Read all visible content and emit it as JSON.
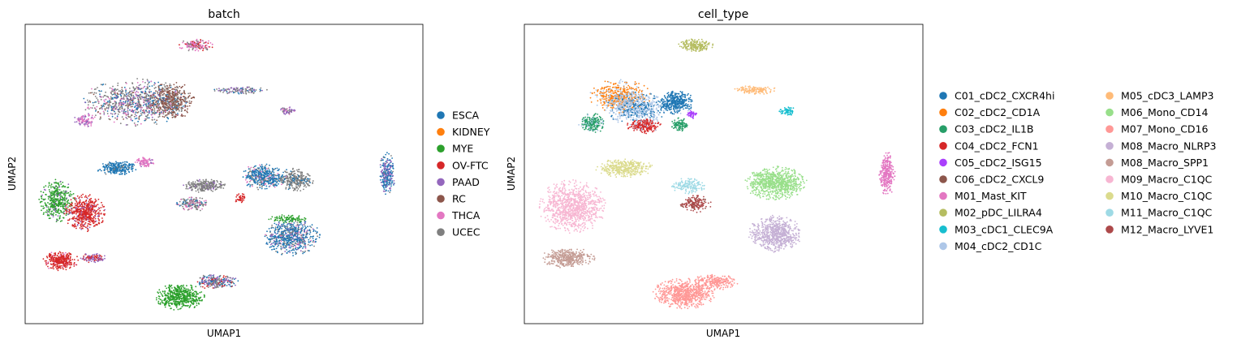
{
  "chart_data": [
    {
      "type": "scatter",
      "title": "batch",
      "xlabel": "UMAP1",
      "ylabel": "UMAP2",
      "xlim": [
        0,
        100
      ],
      "ylim": [
        0,
        100
      ],
      "ticks": false,
      "grid": false,
      "legend": "right",
      "legend_labels": [
        "ESCA",
        "KIDNEY",
        "MYE",
        "OV-FTC",
        "PAAD",
        "RC",
        "THCA",
        "UCEC"
      ],
      "colors": {
        "ESCA": "#1f77b4",
        "KIDNEY": "#ff7f0e",
        "MYE": "#2ca02c",
        "OV-FTC": "#d62728",
        "PAAD": "#9467bd",
        "RC": "#8c564b",
        "THCA": "#e377c2",
        "UCEC": "#7f7f7f"
      },
      "clusters": [
        {
          "cx": 43,
          "cy": 93,
          "rx": 4,
          "ry": 1.8,
          "n": 160,
          "mix": [
            [
              "THCA",
              0.5
            ],
            [
              "UCEC",
              0.3
            ],
            [
              "OV-FTC",
              0.2
            ]
          ]
        },
        {
          "cx": 28,
          "cy": 74,
          "rx": 12,
          "ry": 7,
          "n": 900,
          "mix": [
            [
              "UCEC",
              0.45
            ],
            [
              "ESCA",
              0.2
            ],
            [
              "THCA",
              0.15
            ],
            [
              "RC",
              0.12
            ],
            [
              "PAAD",
              0.08
            ]
          ]
        },
        {
          "cx": 37,
          "cy": 74.5,
          "rx": 5,
          "ry": 5.5,
          "n": 420,
          "mix": [
            [
              "RC",
              0.7
            ],
            [
              "UCEC",
              0.2
            ],
            [
              "ESCA",
              0.1
            ]
          ]
        },
        {
          "cx": 15,
          "cy": 68,
          "rx": 2.5,
          "ry": 2,
          "n": 90,
          "mix": [
            [
              "THCA",
              0.7
            ],
            [
              "PAAD",
              0.3
            ]
          ]
        },
        {
          "cx": 54,
          "cy": 78,
          "rx": 6,
          "ry": 1.2,
          "n": 130,
          "mix": [
            [
              "UCEC",
              0.5
            ],
            [
              "PAAD",
              0.3
            ],
            [
              "ESCA",
              0.2
            ]
          ]
        },
        {
          "cx": 66,
          "cy": 71,
          "rx": 2,
          "ry": 1.3,
          "n": 60,
          "mix": [
            [
              "PAAD",
              0.5
            ],
            [
              "UCEC",
              0.3
            ],
            [
              "THCA",
              0.2
            ]
          ]
        },
        {
          "cx": 23,
          "cy": 52,
          "rx": 4.5,
          "ry": 2.2,
          "n": 260,
          "mix": [
            [
              "ESCA",
              0.9
            ],
            [
              "UCEC",
              0.1
            ]
          ]
        },
        {
          "cx": 30,
          "cy": 54,
          "rx": 2.2,
          "ry": 1.5,
          "n": 90,
          "mix": [
            [
              "THCA",
              0.8
            ],
            [
              "PAAD",
              0.2
            ]
          ]
        },
        {
          "cx": 8,
          "cy": 41,
          "rx": 4,
          "ry": 6.5,
          "n": 420,
          "mix": [
            [
              "MYE",
              0.85
            ],
            [
              "PAAD",
              0.15
            ]
          ]
        },
        {
          "cx": 15,
          "cy": 37,
          "rx": 4.5,
          "ry": 5.5,
          "n": 520,
          "mix": [
            [
              "OV-FTC",
              0.88
            ],
            [
              "PAAD",
              0.12
            ]
          ]
        },
        {
          "cx": 45,
          "cy": 46,
          "rx": 5,
          "ry": 2,
          "n": 260,
          "mix": [
            [
              "UCEC",
              0.9
            ],
            [
              "PAAD",
              0.1
            ]
          ]
        },
        {
          "cx": 42,
          "cy": 40,
          "rx": 3.5,
          "ry": 2.3,
          "n": 170,
          "mix": [
            [
              "UCEC",
              0.6
            ],
            [
              "THCA",
              0.25
            ],
            [
              "ESCA",
              0.15
            ]
          ]
        },
        {
          "cx": 60,
          "cy": 49,
          "rx": 5,
          "ry": 4,
          "n": 430,
          "mix": [
            [
              "ESCA",
              0.75
            ],
            [
              "UCEC",
              0.15
            ],
            [
              "THCA",
              0.1
            ]
          ]
        },
        {
          "cx": 68,
          "cy": 48,
          "rx": 4,
          "ry": 3.5,
          "n": 300,
          "mix": [
            [
              "UCEC",
              0.85
            ],
            [
              "ESCA",
              0.15
            ]
          ]
        },
        {
          "cx": 54,
          "cy": 42,
          "rx": 1.4,
          "ry": 1.6,
          "n": 40,
          "mix": [
            [
              "OV-FTC",
              1.0
            ]
          ]
        },
        {
          "cx": 67,
          "cy": 29,
          "rx": 6.5,
          "ry": 5.5,
          "n": 650,
          "mix": [
            [
              "ESCA",
              0.6
            ],
            [
              "UCEC",
              0.25
            ],
            [
              "PAAD",
              0.1
            ],
            [
              "THCA",
              0.05
            ]
          ]
        },
        {
          "cx": 66,
          "cy": 35,
          "rx": 5,
          "ry": 1.2,
          "n": 90,
          "mix": [
            [
              "MYE",
              1.0
            ]
          ]
        },
        {
          "cx": 91,
          "cy": 50,
          "rx": 1.8,
          "ry": 6.5,
          "n": 260,
          "mix": [
            [
              "ESCA",
              0.55
            ],
            [
              "PAAD",
              0.35
            ],
            [
              "UCEC",
              0.1
            ]
          ]
        },
        {
          "cx": 9,
          "cy": 21,
          "rx": 4,
          "ry": 3,
          "n": 300,
          "mix": [
            [
              "OV-FTC",
              0.95
            ],
            [
              "THCA",
              0.05
            ]
          ]
        },
        {
          "cx": 17,
          "cy": 22,
          "rx": 3,
          "ry": 1.5,
          "n": 110,
          "mix": [
            [
              "PAAD",
              0.6
            ],
            [
              "OV-FTC",
              0.4
            ]
          ]
        },
        {
          "cx": 39,
          "cy": 9,
          "rx": 5.5,
          "ry": 4,
          "n": 520,
          "mix": [
            [
              "MYE",
              1.0
            ]
          ]
        },
        {
          "cx": 48,
          "cy": 14,
          "rx": 5,
          "ry": 2.2,
          "n": 260,
          "mix": [
            [
              "UCEC",
              0.35
            ],
            [
              "PAAD",
              0.3
            ],
            [
              "ESCA",
              0.2
            ],
            [
              "OV-FTC",
              0.15
            ]
          ]
        }
      ]
    },
    {
      "type": "scatter",
      "title": "cell_type",
      "xlabel": "UMAP1",
      "ylabel": "UMAP2",
      "xlim": [
        0,
        100
      ],
      "ylim": [
        0,
        100
      ],
      "ticks": false,
      "grid": false,
      "legend": "right",
      "legend_labels": [
        "C01_cDC2_CXCR4hi",
        "C02_cDC2_CD1A",
        "C03_cDC2_IL1B",
        "C04_cDC2_FCN1",
        "C05_cDC2_ISG15",
        "C06_cDC2_CXCL9",
        "M01_Mast_KIT",
        "M02_pDC_LILRA4",
        "M03_cDC1_CLEC9A",
        "M04_cDC2_CD1C",
        "M05_cDC3_LAMP3",
        "M06_Mono_CD14",
        "M07_Mono_CD16",
        "M08_Macro_NLRP3",
        "M08_Macro_SPP1",
        "M09_Macro_C1QC",
        "M10_Macro_C1QC",
        "M11_Macro_C1QC",
        "M12_Macro_LYVE1"
      ],
      "colors": {
        "C01_cDC2_CXCR4hi": "#1f77b4",
        "C02_cDC2_CD1A": "#ff7f0e",
        "C03_cDC2_IL1B": "#279e68",
        "C04_cDC2_FCN1": "#d62728",
        "C05_cDC2_ISG15": "#aa40fc",
        "C06_cDC2_CXCL9": "#8c564b",
        "M01_Mast_KIT": "#e377c2",
        "M02_pDC_LILRA4": "#b5bd61",
        "M03_cDC1_CLEC9A": "#17becf",
        "M04_cDC2_CD1C": "#aec7e8",
        "M05_cDC3_LAMP3": "#ffbb78",
        "M06_Mono_CD14": "#98df8a",
        "M07_Mono_CD16": "#ff9896",
        "M08_Macro_NLRP3": "#c5b0d5",
        "M08_Macro_SPP1": "#c49c94",
        "M09_Macro_C1QC": "#f7b6d2",
        "M10_Macro_C1QC": "#dbdb8d",
        "M11_Macro_C1QC": "#9edae5",
        "M12_Macro_LYVE1": "#ad494a"
      },
      "clusters": [
        {
          "cx": 43,
          "cy": 93,
          "rx": 4,
          "ry": 2,
          "n": 200,
          "mix": [
            [
              "M02_pDC_LILRA4",
              1.0
            ]
          ]
        },
        {
          "cx": 24,
          "cy": 76,
          "rx": 7,
          "ry": 5,
          "n": 520,
          "mix": [
            [
              "C02_cDC2_CD1A",
              0.7
            ],
            [
              "M04_cDC2_CD1C",
              0.3
            ]
          ]
        },
        {
          "cx": 28,
          "cy": 72,
          "rx": 7,
          "ry": 5,
          "n": 620,
          "mix": [
            [
              "M04_cDC2_CD1C",
              0.7
            ],
            [
              "C01_cDC2_CXCR4hi",
              0.3
            ]
          ]
        },
        {
          "cx": 38,
          "cy": 74,
          "rx": 4,
          "ry": 3.5,
          "n": 380,
          "mix": [
            [
              "C01_cDC2_CXCR4hi",
              0.95
            ],
            [
              "M04_cDC2_CD1C",
              0.05
            ]
          ]
        },
        {
          "cx": 17,
          "cy": 67,
          "rx": 3,
          "ry": 3,
          "n": 220,
          "mix": [
            [
              "C03_cDC2_IL1B",
              0.8
            ],
            [
              "M04_cDC2_CD1C",
              0.2
            ]
          ]
        },
        {
          "cx": 30,
          "cy": 66,
          "rx": 4,
          "ry": 2.2,
          "n": 220,
          "mix": [
            [
              "C04_cDC2_FCN1",
              0.85
            ],
            [
              "M04_cDC2_CD1C",
              0.15
            ]
          ]
        },
        {
          "cx": 39,
          "cy": 66.5,
          "rx": 2,
          "ry": 2,
          "n": 100,
          "mix": [
            [
              "C03_cDC2_IL1B",
              1.0
            ]
          ]
        },
        {
          "cx": 42,
          "cy": 70,
          "rx": 1.2,
          "ry": 1.4,
          "n": 50,
          "mix": [
            [
              "C05_cDC2_ISG15",
              1.0
            ]
          ]
        },
        {
          "cx": 58,
          "cy": 78,
          "rx": 5,
          "ry": 1.3,
          "n": 140,
          "mix": [
            [
              "M05_cDC3_LAMP3",
              1.0
            ]
          ]
        },
        {
          "cx": 66,
          "cy": 71,
          "rx": 2,
          "ry": 1.5,
          "n": 70,
          "mix": [
            [
              "M03_cDC1_CLEC9A",
              1.0
            ]
          ]
        },
        {
          "cx": 25,
          "cy": 52,
          "rx": 6.5,
          "ry": 2.8,
          "n": 380,
          "mix": [
            [
              "M10_Macro_C1QC",
              1.0
            ]
          ]
        },
        {
          "cx": 12,
          "cy": 39,
          "rx": 7.5,
          "ry": 8,
          "n": 1000,
          "mix": [
            [
              "M09_Macro_C1QC",
              1.0
            ]
          ]
        },
        {
          "cx": 41,
          "cy": 46,
          "rx": 4,
          "ry": 2.3,
          "n": 160,
          "mix": [
            [
              "M11_Macro_C1QC",
              1.0
            ]
          ]
        },
        {
          "cx": 43,
          "cy": 40,
          "rx": 3.5,
          "ry": 2.5,
          "n": 170,
          "mix": [
            [
              "M12_Macro_LYVE1",
              0.9
            ],
            [
              "C06_cDC2_CXCL9",
              0.1
            ]
          ]
        },
        {
          "cx": 63,
          "cy": 47,
          "rx": 7,
          "ry": 5,
          "n": 800,
          "mix": [
            [
              "M06_Mono_CD14",
              1.0
            ]
          ]
        },
        {
          "cx": 63,
          "cy": 30,
          "rx": 6,
          "ry": 5.5,
          "n": 700,
          "mix": [
            [
              "M08_Macro_NLRP3",
              1.0
            ]
          ]
        },
        {
          "cx": 91,
          "cy": 50,
          "rx": 1.8,
          "ry": 6.5,
          "n": 300,
          "mix": [
            [
              "M01_Mast_KIT",
              1.0
            ]
          ]
        },
        {
          "cx": 11,
          "cy": 22,
          "rx": 6,
          "ry": 3,
          "n": 380,
          "mix": [
            [
              "M08_Macro_SPP1",
              1.0
            ]
          ]
        },
        {
          "cx": 40,
          "cy": 10,
          "rx": 7,
          "ry": 4.5,
          "n": 720,
          "mix": [
            [
              "M07_Mono_CD16",
              1.0
            ]
          ]
        },
        {
          "cx": 48,
          "cy": 14,
          "rx": 5,
          "ry": 2.5,
          "n": 260,
          "mix": [
            [
              "M07_Mono_CD16",
              1.0
            ]
          ]
        }
      ]
    }
  ]
}
